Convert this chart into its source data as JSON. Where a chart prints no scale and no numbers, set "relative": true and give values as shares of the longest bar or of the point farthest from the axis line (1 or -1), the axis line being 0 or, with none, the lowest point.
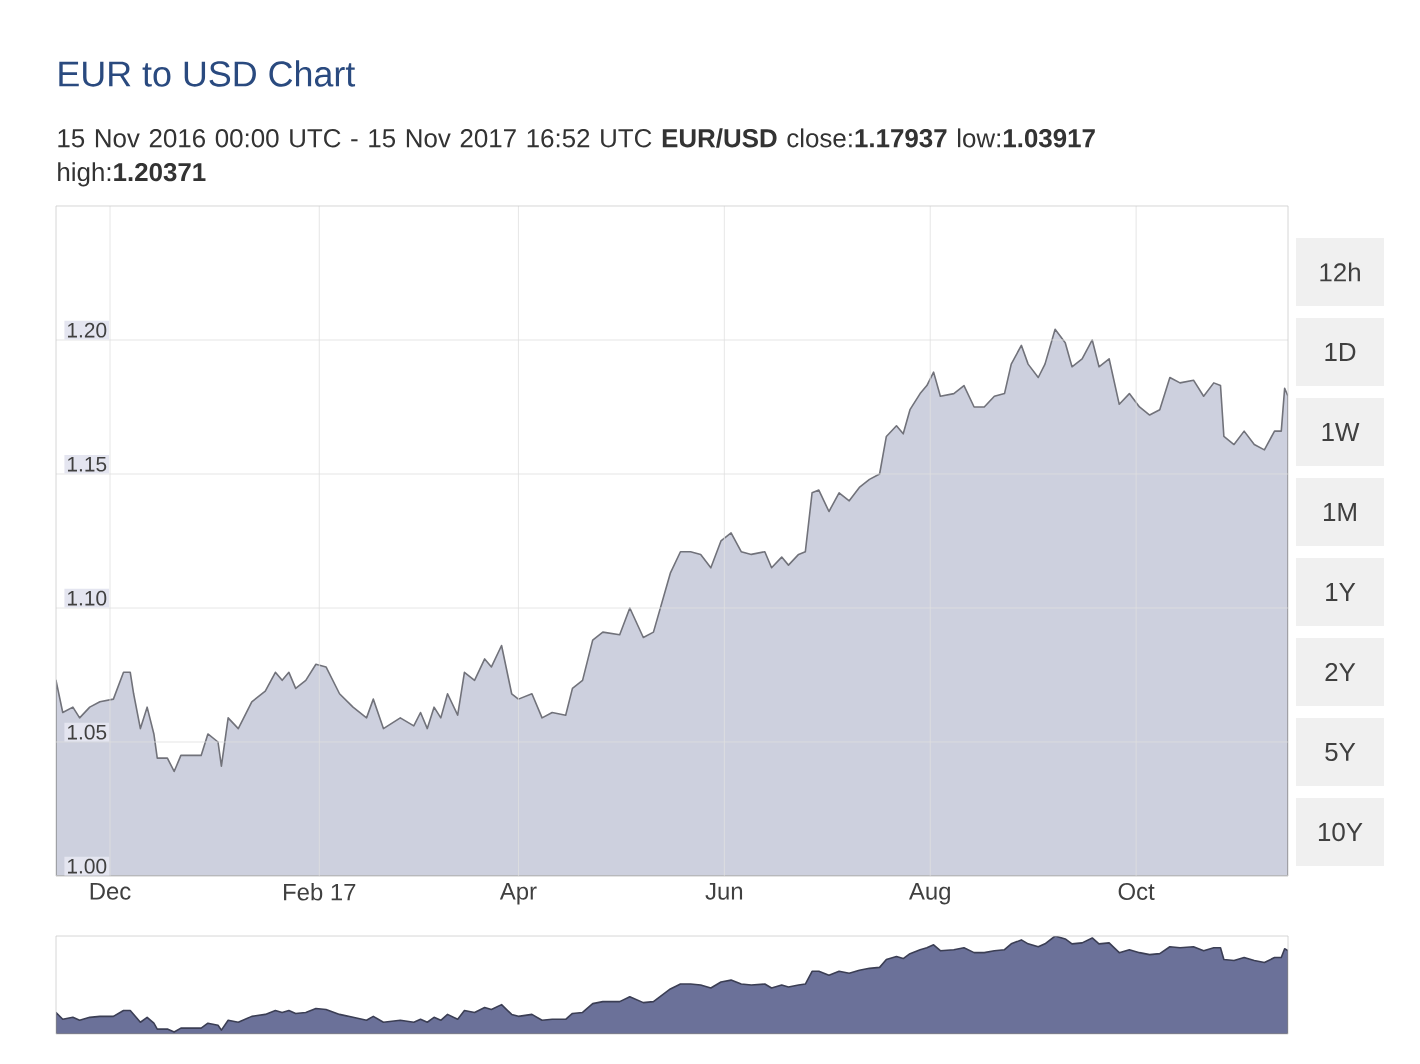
{
  "chart_data": [
    {
      "type": "area",
      "title": "EUR to USD Chart",
      "subtitle": "15 Nov 2016 00:00 UTC - 15 Nov 2017 16:52 UTC   **EUR/USD** close:**1.17937** low:**1.03917** high:**1.20371**",
      "annotations": [
        "12h",
        "1D",
        "1W",
        "1M",
        "1Y",
        "2Y",
        "5Y",
        "10Y"
      ],
      "x": [
        "2016-11-15",
        "2016-11-17",
        "2016-11-20",
        "2016-11-22",
        "2016-11-25",
        "2016-11-28",
        "2016-12-02",
        "2016-12-05",
        "2016-12-07",
        "2016-12-08",
        "2016-12-10",
        "2016-12-12",
        "2016-12-14",
        "2016-12-15",
        "2016-12-18",
        "2016-12-20",
        "2016-12-22",
        "2016-12-28",
        "2016-12-30",
        "2017-01-02",
        "2017-01-03",
        "2017-01-05",
        "2017-01-08",
        "2017-01-12",
        "2017-01-16",
        "2017-01-19",
        "2017-01-21",
        "2017-01-23",
        "2017-01-25",
        "2017-01-28",
        "2017-01-31",
        "2017-02-03",
        "2017-02-07",
        "2017-02-11",
        "2017-02-15",
        "2017-02-17",
        "2017-02-20",
        "2017-02-25",
        "2017-03-01",
        "2017-03-03",
        "2017-03-05",
        "2017-03-07",
        "2017-03-09",
        "2017-03-11",
        "2017-03-14",
        "2017-03-16",
        "2017-03-19",
        "2017-03-22",
        "2017-03-24",
        "2017-03-27",
        "2017-03-30",
        "2017-04-01",
        "2017-04-05",
        "2017-04-08",
        "2017-04-11",
        "2017-04-15",
        "2017-04-17",
        "2017-04-20",
        "2017-04-23",
        "2017-04-26",
        "2017-05-01",
        "2017-05-04",
        "2017-05-08",
        "2017-05-11",
        "2017-05-16",
        "2017-05-19",
        "2017-05-22",
        "2017-05-25",
        "2017-05-28",
        "2017-05-31",
        "2017-06-03",
        "2017-06-06",
        "2017-06-09",
        "2017-06-13",
        "2017-06-15",
        "2017-06-18",
        "2017-06-20",
        "2017-06-23",
        "2017-06-25",
        "2017-06-27",
        "2017-06-29",
        "2017-07-02",
        "2017-07-05",
        "2017-07-08",
        "2017-07-11",
        "2017-07-14",
        "2017-07-17",
        "2017-07-19",
        "2017-07-22",
        "2017-07-24",
        "2017-07-26",
        "2017-07-29",
        "2017-07-31",
        "2017-08-02",
        "2017-08-04",
        "2017-08-08",
        "2017-08-11",
        "2017-08-14",
        "2017-08-17",
        "2017-08-20",
        "2017-08-23",
        "2017-08-25",
        "2017-08-28",
        "2017-08-30",
        "2017-09-02",
        "2017-09-04",
        "2017-09-07",
        "2017-09-10",
        "2017-09-12",
        "2017-09-15",
        "2017-09-18",
        "2017-09-20",
        "2017-09-23",
        "2017-09-26",
        "2017-09-29",
        "2017-10-02",
        "2017-10-05",
        "2017-10-08",
        "2017-10-11",
        "2017-10-14",
        "2017-10-18",
        "2017-10-21",
        "2017-10-24",
        "2017-10-26",
        "2017-10-27",
        "2017-10-30",
        "2017-11-02",
        "2017-11-05",
        "2017-11-08",
        "2017-11-11",
        "2017-11-13",
        "2017-11-14",
        "2017-11-15"
      ],
      "values": [
        1.073,
        1.061,
        1.063,
        1.059,
        1.063,
        1.065,
        1.066,
        1.076,
        1.076,
        1.068,
        1.055,
        1.063,
        1.053,
        1.044,
        1.044,
        1.039,
        1.045,
        1.045,
        1.053,
        1.05,
        1.041,
        1.059,
        1.055,
        1.065,
        1.069,
        1.076,
        1.073,
        1.076,
        1.07,
        1.073,
        1.079,
        1.078,
        1.068,
        1.063,
        1.059,
        1.066,
        1.055,
        1.059,
        1.056,
        1.061,
        1.055,
        1.063,
        1.059,
        1.068,
        1.06,
        1.076,
        1.073,
        1.081,
        1.078,
        1.086,
        1.068,
        1.066,
        1.068,
        1.059,
        1.061,
        1.06,
        1.07,
        1.073,
        1.088,
        1.091,
        1.09,
        1.1,
        1.089,
        1.091,
        1.113,
        1.121,
        1.121,
        1.12,
        1.115,
        1.125,
        1.128,
        1.121,
        1.12,
        1.121,
        1.115,
        1.119,
        1.116,
        1.12,
        1.121,
        1.143,
        1.144,
        1.136,
        1.143,
        1.14,
        1.145,
        1.148,
        1.15,
        1.164,
        1.168,
        1.165,
        1.174,
        1.18,
        1.183,
        1.188,
        1.179,
        1.18,
        1.183,
        1.175,
        1.175,
        1.179,
        1.18,
        1.191,
        1.198,
        1.191,
        1.186,
        1.191,
        1.204,
        1.199,
        1.19,
        1.193,
        1.2,
        1.19,
        1.193,
        1.176,
        1.18,
        1.175,
        1.172,
        1.174,
        1.186,
        1.184,
        1.185,
        1.179,
        1.184,
        1.183,
        1.164,
        1.161,
        1.166,
        1.161,
        1.159,
        1.166,
        1.166,
        1.182,
        1.179
      ],
      "color": "#cdd0de",
      "xlim": [
        "2016-11-15",
        "2017-11-15"
      ],
      "ylim": [
        1.0,
        1.25
      ],
      "xticks": [
        {
          "value": "2016-12-01",
          "label": "Dec"
        },
        {
          "value": "2017-02-01",
          "label": "Feb 17"
        },
        {
          "value": "2017-04-01",
          "label": "Apr"
        },
        {
          "value": "2017-06-01",
          "label": "Jun"
        },
        {
          "value": "2017-08-01",
          "label": "Aug"
        },
        {
          "value": "2017-10-01",
          "label": "Oct"
        }
      ],
      "yticks": [
        {
          "value": 1.0,
          "label": "1.00"
        },
        {
          "value": 1.05,
          "label": "1.05"
        },
        {
          "value": 1.1,
          "label": "1.10"
        },
        {
          "value": 1.15,
          "label": "1.15"
        },
        {
          "value": 1.2,
          "label": "1.20"
        }
      ],
      "grid": true
    },
    {
      "type": "area",
      "relative": true,
      "x": [
        "2016-11-15",
        "2016-11-17",
        "2016-11-20",
        "2016-11-22",
        "2016-11-25",
        "2016-11-28",
        "2016-12-02",
        "2016-12-05",
        "2016-12-07",
        "2016-12-08",
        "2016-12-10",
        "2016-12-12",
        "2016-12-14",
        "2016-12-15",
        "2016-12-18",
        "2016-12-20",
        "2016-12-22",
        "2016-12-28",
        "2016-12-30",
        "2017-01-02",
        "2017-01-03",
        "2017-01-05",
        "2017-01-08",
        "2017-01-12",
        "2017-01-16",
        "2017-01-19",
        "2017-01-21",
        "2017-01-23",
        "2017-01-25",
        "2017-01-28",
        "2017-01-31",
        "2017-02-03",
        "2017-02-07",
        "2017-02-11",
        "2017-02-15",
        "2017-02-17",
        "2017-02-20",
        "2017-02-25",
        "2017-03-01",
        "2017-03-03",
        "2017-03-05",
        "2017-03-07",
        "2017-03-09",
        "2017-03-11",
        "2017-03-14",
        "2017-03-16",
        "2017-03-19",
        "2017-03-22",
        "2017-03-24",
        "2017-03-27",
        "2017-03-30",
        "2017-04-01",
        "2017-04-05",
        "2017-04-08",
        "2017-04-11",
        "2017-04-15",
        "2017-04-17",
        "2017-04-20",
        "2017-04-23",
        "2017-04-26",
        "2017-05-01",
        "2017-05-04",
        "2017-05-08",
        "2017-05-11",
        "2017-05-16",
        "2017-05-19",
        "2017-05-22",
        "2017-05-25",
        "2017-05-28",
        "2017-05-31",
        "2017-06-03",
        "2017-06-06",
        "2017-06-09",
        "2017-06-13",
        "2017-06-15",
        "2017-06-18",
        "2017-06-20",
        "2017-06-23",
        "2017-06-25",
        "2017-06-27",
        "2017-06-29",
        "2017-07-02",
        "2017-07-05",
        "2017-07-08",
        "2017-07-11",
        "2017-07-14",
        "2017-07-17",
        "2017-07-19",
        "2017-07-22",
        "2017-07-24",
        "2017-07-26",
        "2017-07-29",
        "2017-07-31",
        "2017-08-02",
        "2017-08-04",
        "2017-08-08",
        "2017-08-11",
        "2017-08-14",
        "2017-08-17",
        "2017-08-20",
        "2017-08-23",
        "2017-08-25",
        "2017-08-28",
        "2017-08-30",
        "2017-09-02",
        "2017-09-04",
        "2017-09-07",
        "2017-09-10",
        "2017-09-12",
        "2017-09-15",
        "2017-09-18",
        "2017-09-20",
        "2017-09-23",
        "2017-09-26",
        "2017-09-29",
        "2017-10-02",
        "2017-10-05",
        "2017-10-08",
        "2017-10-11",
        "2017-10-14",
        "2017-10-18",
        "2017-10-21",
        "2017-10-24",
        "2017-10-26",
        "2017-10-27",
        "2017-10-30",
        "2017-11-02",
        "2017-11-05",
        "2017-11-08",
        "2017-11-11",
        "2017-11-13",
        "2017-11-14",
        "2017-11-15"
      ],
      "values": [
        0.22,
        0.15,
        0.17,
        0.14,
        0.17,
        0.18,
        0.18,
        0.24,
        0.24,
        0.2,
        0.12,
        0.17,
        0.11,
        0.05,
        0.05,
        0.02,
        0.06,
        0.06,
        0.11,
        0.09,
        0.04,
        0.14,
        0.12,
        0.18,
        0.2,
        0.24,
        0.22,
        0.24,
        0.21,
        0.22,
        0.26,
        0.25,
        0.2,
        0.17,
        0.14,
        0.18,
        0.12,
        0.14,
        0.12,
        0.15,
        0.12,
        0.17,
        0.14,
        0.2,
        0.15,
        0.24,
        0.22,
        0.27,
        0.25,
        0.3,
        0.2,
        0.18,
        0.2,
        0.14,
        0.15,
        0.15,
        0.21,
        0.22,
        0.31,
        0.33,
        0.33,
        0.38,
        0.32,
        0.33,
        0.46,
        0.51,
        0.51,
        0.5,
        0.47,
        0.53,
        0.55,
        0.51,
        0.5,
        0.51,
        0.47,
        0.5,
        0.48,
        0.5,
        0.51,
        0.64,
        0.64,
        0.6,
        0.64,
        0.62,
        0.65,
        0.67,
        0.68,
        0.76,
        0.79,
        0.77,
        0.82,
        0.86,
        0.88,
        0.91,
        0.85,
        0.86,
        0.88,
        0.83,
        0.83,
        0.85,
        0.86,
        0.92,
        0.96,
        0.92,
        0.89,
        0.92,
        1,
        0.97,
        0.92,
        0.93,
        0.98,
        0.92,
        0.93,
        0.83,
        0.86,
        0.83,
        0.81,
        0.82,
        0.89,
        0.88,
        0.89,
        0.85,
        0.88,
        0.88,
        0.76,
        0.75,
        0.78,
        0.75,
        0.73,
        0.78,
        0.78,
        0.87,
        0.85
      ],
      "color": "#6b7199",
      "xlim": [
        "2016-11-15",
        "2017-11-15"
      ]
    }
  ]
}
